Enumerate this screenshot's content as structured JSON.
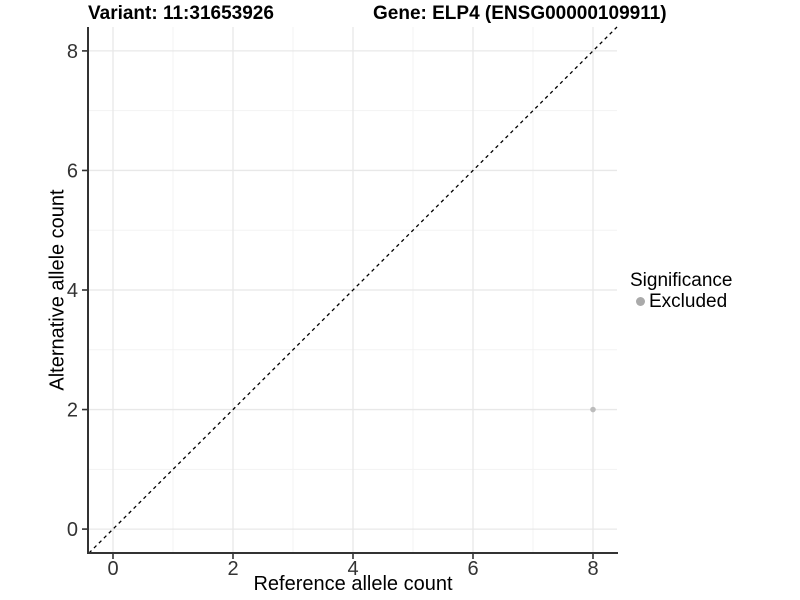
{
  "titles": {
    "variant": "Variant: 11:31653926",
    "gene": "Gene: ELP4 (ENSG00000109911)"
  },
  "axes": {
    "x": {
      "label": "Reference allele count"
    },
    "y": {
      "label": "Alternative allele count"
    }
  },
  "legend": {
    "title": "Significance",
    "items": [
      {
        "label": "Excluded",
        "color": "#aaaaaa"
      }
    ]
  },
  "colors": {
    "background": "#ffffff",
    "grid_major": "#e8e8e8",
    "grid_minor": "#f3f3f3",
    "axis_line": "#333333",
    "tick_label": "#333333",
    "reference_line": "#000000",
    "point": "#bcbcbc"
  },
  "chart_data": {
    "type": "scatter",
    "title": "Variant: 11:31653926 / Gene: ELP4 (ENSG00000109911)",
    "xlabel": "Reference allele count",
    "ylabel": "Alternative allele count",
    "xlim": [
      -0.4,
      8.4
    ],
    "ylim": [
      -0.4,
      8.4
    ],
    "x_major_ticks": [
      0,
      2,
      4,
      6,
      8
    ],
    "y_major_ticks": [
      0,
      2,
      4,
      6,
      8
    ],
    "x_minor_ticks": [
      1,
      3,
      5,
      7
    ],
    "y_minor_ticks": [
      1,
      3,
      5,
      7
    ],
    "grid": "major+minor",
    "legend_position": "right",
    "series": [
      {
        "name": "Excluded",
        "color": "#bcbcbc",
        "points": [
          {
            "x": 8,
            "y": 2
          }
        ]
      }
    ],
    "reference_line": {
      "style": "dashed",
      "slope": 1,
      "intercept": 0,
      "color": "#000000"
    }
  }
}
